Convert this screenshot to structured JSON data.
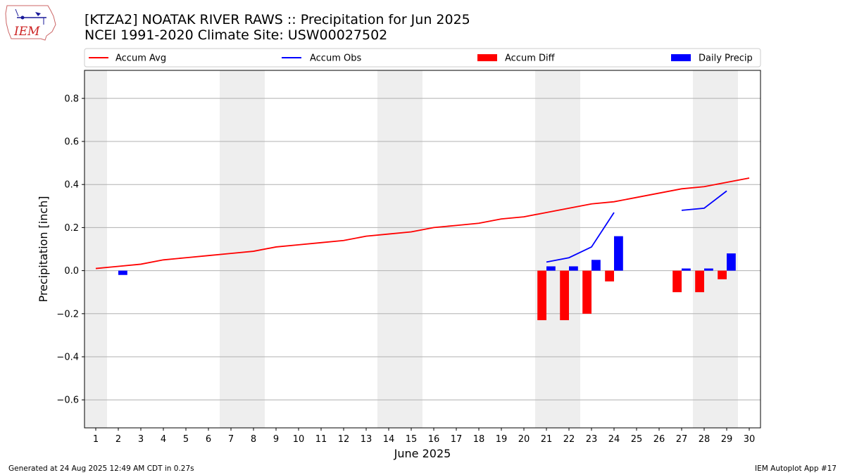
{
  "header": {
    "title_line1": "[KTZA2] NOATAK RIVER RAWS :: Precipitation for Jun 2025",
    "title_line2": "NCEI 1991-2020 Climate Site: USW00027502",
    "logo_text": "IEM"
  },
  "footer": {
    "generated": "Generated at 24 Aug 2025 12:49 AM CDT in 0.27s",
    "app": "IEM Autoplot App #17"
  },
  "colors": {
    "accum_avg": "#ff0000",
    "accum_obs": "#0000ff",
    "accum_diff": "#ff0000",
    "daily_precip": "#0000ff",
    "weekend_shade": "#eeeeee",
    "grid": "#b0b0b0"
  },
  "chart_data": {
    "type": "bar",
    "title": "[KTZA2] NOATAK RIVER RAWS :: Precipitation for Jun 2025",
    "subtitle": "NCEI 1991-2020 Climate Site: USW00027502",
    "xlabel": "June 2025",
    "ylabel": "Precipitation [inch]",
    "ylim": [
      -0.73,
      0.93
    ],
    "xlim": [
      0.5,
      30.5
    ],
    "yticks": [
      -0.6,
      -0.4,
      -0.2,
      0.0,
      0.2,
      0.4,
      0.6,
      0.8
    ],
    "ytick_labels": [
      "−0.6",
      "−0.4",
      "−0.2",
      "0.0",
      "0.2",
      "0.4",
      "0.6",
      "0.8"
    ],
    "categories": [
      1,
      2,
      3,
      4,
      5,
      6,
      7,
      8,
      9,
      10,
      11,
      12,
      13,
      14,
      15,
      16,
      17,
      18,
      19,
      20,
      21,
      22,
      23,
      24,
      25,
      26,
      27,
      28,
      29,
      30
    ],
    "shaded_days": [
      1,
      7,
      8,
      14,
      15,
      21,
      22,
      28,
      29
    ],
    "grid": true,
    "legend_placement": "top",
    "legend": [
      "Accum Avg",
      "Accum Obs",
      "Accum Diff",
      "Daily Precip"
    ],
    "series": [
      {
        "name": "Accum Avg",
        "kind": "line",
        "color": "#ff0000",
        "x": [
          1,
          2,
          3,
          4,
          5,
          6,
          7,
          8,
          9,
          10,
          11,
          12,
          13,
          14,
          15,
          16,
          17,
          18,
          19,
          20,
          21,
          22,
          23,
          24,
          25,
          26,
          27,
          28,
          29,
          30
        ],
        "values": [
          0.01,
          0.02,
          0.03,
          0.05,
          0.06,
          0.07,
          0.08,
          0.09,
          0.11,
          0.12,
          0.13,
          0.14,
          0.16,
          0.17,
          0.18,
          0.2,
          0.21,
          0.22,
          0.24,
          0.25,
          0.27,
          0.29,
          0.31,
          0.32,
          0.34,
          0.36,
          0.38,
          0.39,
          0.41,
          0.43
        ]
      },
      {
        "name": "Accum Obs",
        "kind": "line",
        "color": "#0000ff",
        "segments": [
          {
            "x": [
              21,
              22,
              23,
              24
            ],
            "values": [
              0.04,
              0.06,
              0.11,
              0.27
            ]
          },
          {
            "x": [
              27,
              28,
              29
            ],
            "values": [
              0.28,
              0.29,
              0.37
            ]
          }
        ]
      },
      {
        "name": "Accum Diff",
        "kind": "bar",
        "color": "#ff0000",
        "offset": -0.2,
        "x": [
          21,
          22,
          23,
          24,
          27,
          28,
          29
        ],
        "values": [
          -0.23,
          -0.23,
          -0.2,
          -0.05,
          -0.1,
          -0.1,
          -0.04
        ]
      },
      {
        "name": "Daily Precip",
        "kind": "bar",
        "color": "#0000ff",
        "offset": 0.2,
        "x": [
          2,
          21,
          22,
          23,
          24,
          27,
          28,
          29
        ],
        "values": [
          -0.02,
          0.02,
          0.02,
          0.05,
          0.16,
          0.01,
          0.01,
          0.08
        ]
      }
    ]
  }
}
